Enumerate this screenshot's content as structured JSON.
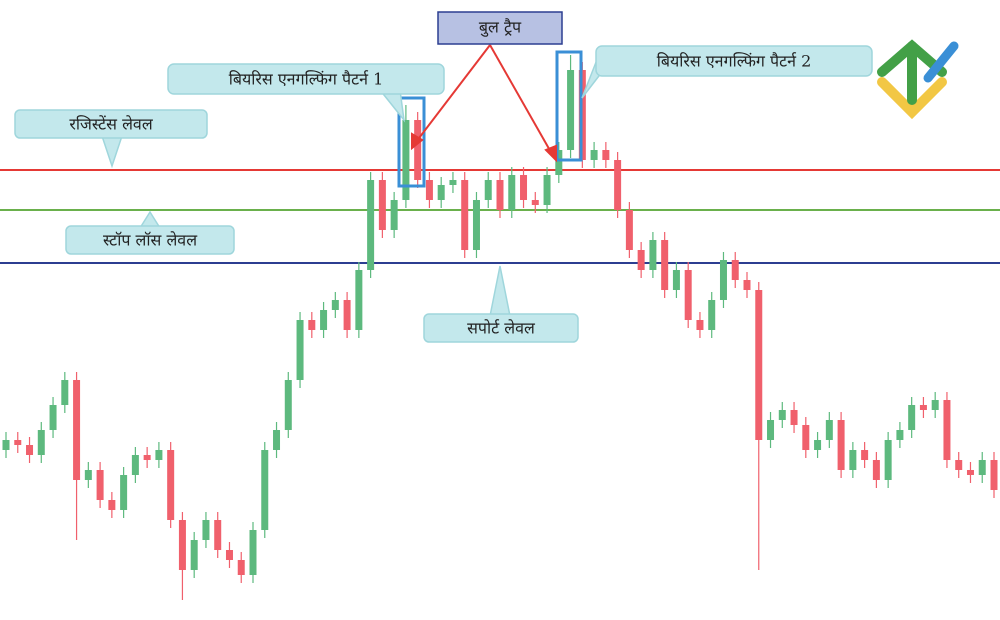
{
  "chart_data": {
    "type": "candlestick",
    "ylim": [
      0,
      620
    ],
    "open": [
      170,
      180,
      175,
      165,
      190,
      215,
      240,
      140,
      150,
      120,
      110,
      145,
      165,
      160,
      170,
      100,
      50,
      80,
      100,
      70,
      60,
      45,
      90,
      170,
      190,
      240,
      300,
      290,
      310,
      320,
      290,
      350,
      440,
      390,
      420,
      500,
      440,
      420,
      435,
      440,
      370,
      420,
      440,
      410,
      445,
      420,
      415,
      445,
      470,
      550,
      460,
      470,
      460,
      410,
      370,
      350,
      380,
      330,
      350,
      300,
      290,
      320,
      360,
      340,
      330,
      180,
      200,
      210,
      195,
      170,
      180,
      200,
      150,
      170,
      160,
      140,
      180,
      190,
      215,
      210,
      220,
      160,
      150,
      145,
      160
    ],
    "high": [
      188,
      188,
      183,
      198,
      223,
      248,
      248,
      158,
      158,
      128,
      153,
      173,
      173,
      178,
      178,
      108,
      88,
      108,
      108,
      78,
      68,
      98,
      178,
      198,
      248,
      308,
      308,
      318,
      328,
      328,
      358,
      448,
      448,
      428,
      515,
      508,
      448,
      443,
      448,
      448,
      428,
      448,
      448,
      453,
      453,
      428,
      453,
      478,
      565,
      558,
      478,
      478,
      468,
      418,
      378,
      388,
      388,
      358,
      358,
      308,
      328,
      368,
      368,
      348,
      338,
      208,
      218,
      218,
      203,
      188,
      208,
      208,
      178,
      178,
      168,
      188,
      198,
      223,
      223,
      228,
      228,
      168,
      158,
      168,
      168
    ],
    "low": [
      162,
      167,
      157,
      157,
      182,
      207,
      80,
      132,
      112,
      102,
      102,
      137,
      152,
      152,
      92,
      20,
      42,
      72,
      62,
      52,
      37,
      37,
      82,
      162,
      182,
      232,
      282,
      282,
      302,
      282,
      282,
      342,
      382,
      382,
      412,
      432,
      412,
      412,
      427,
      362,
      362,
      412,
      402,
      402,
      412,
      407,
      407,
      437,
      462,
      452,
      452,
      452,
      402,
      362,
      342,
      342,
      322,
      322,
      292,
      282,
      282,
      312,
      332,
      322,
      50,
      172,
      192,
      187,
      162,
      162,
      172,
      142,
      142,
      152,
      132,
      132,
      172,
      182,
      202,
      202,
      152,
      142,
      137,
      137,
      122
    ],
    "close": [
      180,
      175,
      165,
      190,
      215,
      240,
      140,
      150,
      120,
      110,
      145,
      165,
      160,
      170,
      100,
      50,
      80,
      100,
      70,
      60,
      45,
      90,
      170,
      190,
      240,
      300,
      290,
      310,
      320,
      290,
      350,
      440,
      390,
      420,
      500,
      440,
      420,
      435,
      440,
      370,
      420,
      440,
      410,
      445,
      420,
      415,
      445,
      470,
      550,
      460,
      470,
      460,
      410,
      370,
      350,
      380,
      330,
      350,
      300,
      290,
      320,
      360,
      340,
      330,
      180,
      200,
      210,
      195,
      170,
      180,
      200,
      150,
      170,
      160,
      140,
      180,
      190,
      215,
      210,
      220,
      160,
      150,
      145,
      160,
      130
    ],
    "up_color": "#5db97e",
    "down_color": "#f0606c",
    "levels": [
      {
        "name": "रजिस्टेंस लेवल",
        "value": 450,
        "color": "#e53935"
      },
      {
        "name": "स्टॉप लॉस लेवल",
        "value": 410,
        "color": "#6ab04c"
      },
      {
        "name": "सपोर्ट लेवल",
        "value": 357,
        "color": "#2c3e91"
      }
    ],
    "annotations": [
      "बुल ट्रैप",
      "बियरिस एनगल्फिंग पैटर्न 1",
      "बियरिस एनगल्फिंग पैटर्न 2"
    ]
  }
}
